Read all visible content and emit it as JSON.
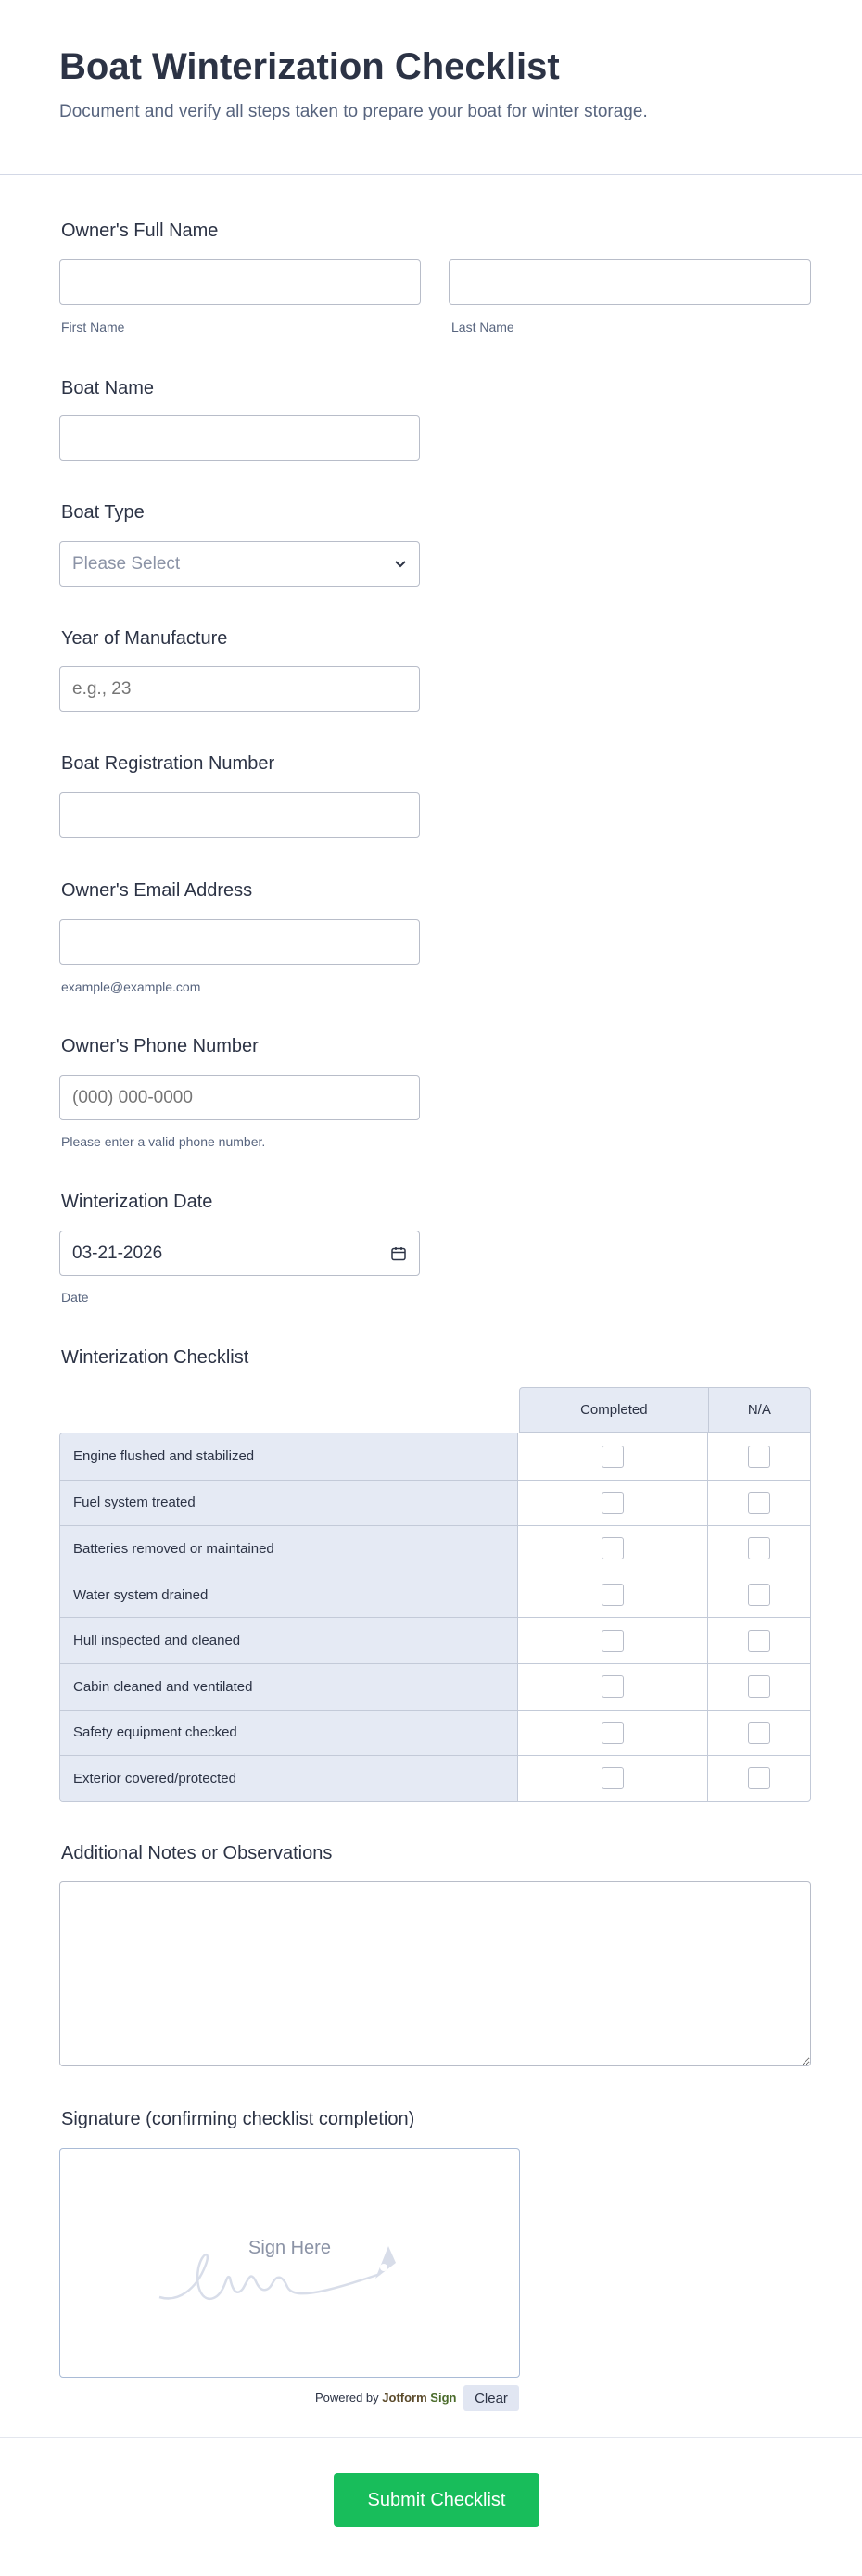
{
  "header": {
    "title": "Boat Winterization Checklist",
    "subtitle": "Document and verify all steps taken to prepare your boat for winter storage."
  },
  "fields": {
    "full_name": {
      "label": "Owner's Full Name",
      "first_sublabel": "First Name",
      "last_sublabel": "Last Name",
      "first_value": "",
      "last_value": ""
    },
    "boat_name": {
      "label": "Boat Name",
      "value": ""
    },
    "boat_type": {
      "label": "Boat Type",
      "selected": "Please Select"
    },
    "year": {
      "label": "Year of Manufacture",
      "placeholder": "e.g., 23"
    },
    "registration": {
      "label": "Boat Registration Number",
      "value": ""
    },
    "email": {
      "label": "Owner's Email Address",
      "sublabel": "example@example.com",
      "value": ""
    },
    "phone": {
      "label": "Owner's Phone Number",
      "placeholder": "(000) 000-0000",
      "sublabel": "Please enter a valid phone number."
    },
    "date": {
      "label": "Winterization Date",
      "value": "03-21-2026",
      "sublabel": "Date",
      "icon": "calendar-icon"
    }
  },
  "checklist": {
    "label": "Winterization Checklist",
    "columns": [
      "Completed",
      "N/A"
    ],
    "rows": [
      "Engine flushed and stabilized",
      "Fuel system treated",
      "Batteries removed or maintained",
      "Water system drained",
      "Hull inspected and cleaned",
      "Cabin cleaned and ventilated",
      "Safety equipment checked",
      "Exterior covered/protected"
    ]
  },
  "notes": {
    "label": "Additional Notes or Observations",
    "value": ""
  },
  "signature": {
    "label": "Signature (confirming checklist completion)",
    "placeholder": "Sign Here",
    "powered_by": "Powered by",
    "brand": "Jotform",
    "brand_sign": "Sign",
    "clear_label": "Clear"
  },
  "submit": {
    "label": "Submit Checklist",
    "color": "#18bd5b"
  }
}
